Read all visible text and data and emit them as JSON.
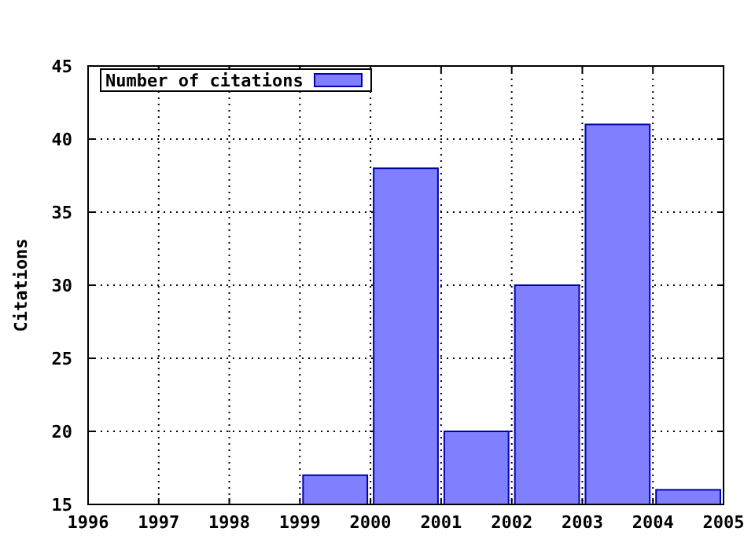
{
  "chart_data": {
    "type": "bar",
    "ylabel": "Citations",
    "x": [
      1999.5,
      2000.5,
      2001.5,
      2002.5,
      2003.5,
      2004.5
    ],
    "series": [
      {
        "name": "Number of citations",
        "color": "#8080ff",
        "values": [
          17,
          38,
          20,
          30,
          41,
          16
        ]
      }
    ],
    "xlim": [
      1996,
      2005
    ],
    "xticks": [
      1996,
      1997,
      1998,
      1999,
      2000,
      2001,
      2002,
      2003,
      2004,
      2005
    ],
    "ylim": [
      15,
      45
    ],
    "yticks": [
      15,
      20,
      25,
      30,
      35,
      40,
      45
    ],
    "grid": true,
    "legend": "top left"
  }
}
